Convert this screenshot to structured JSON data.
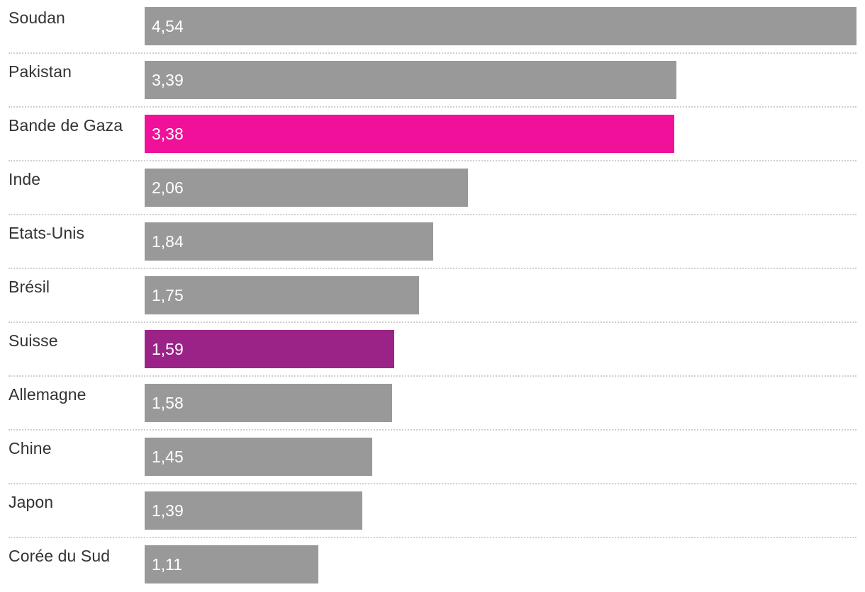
{
  "chart_data": {
    "type": "bar",
    "orientation": "horizontal",
    "title": "",
    "xlabel": "",
    "ylabel": "",
    "xlim": [
      0,
      4.54
    ],
    "grid": false,
    "categories": [
      "Soudan",
      "Pakistan",
      "Bande de Gaza",
      "Inde",
      "Etats-Unis",
      "Brésil",
      "Suisse",
      "Allemagne",
      "Chine",
      "Japon",
      "Corée du Sud"
    ],
    "values": [
      4.54,
      3.39,
      3.38,
      2.06,
      1.84,
      1.75,
      1.59,
      1.58,
      1.45,
      1.39,
      1.11
    ],
    "value_labels": [
      "4,54",
      "3,39",
      "3,38",
      "2,06",
      "1,84",
      "1,75",
      "1,59",
      "1,58",
      "1,45",
      "1,39",
      "1,11"
    ],
    "colors": {
      "default": "#999999",
      "highlights": {
        "Bande de Gaza": "#f0109a",
        "Suisse": "#9b2388"
      }
    }
  }
}
